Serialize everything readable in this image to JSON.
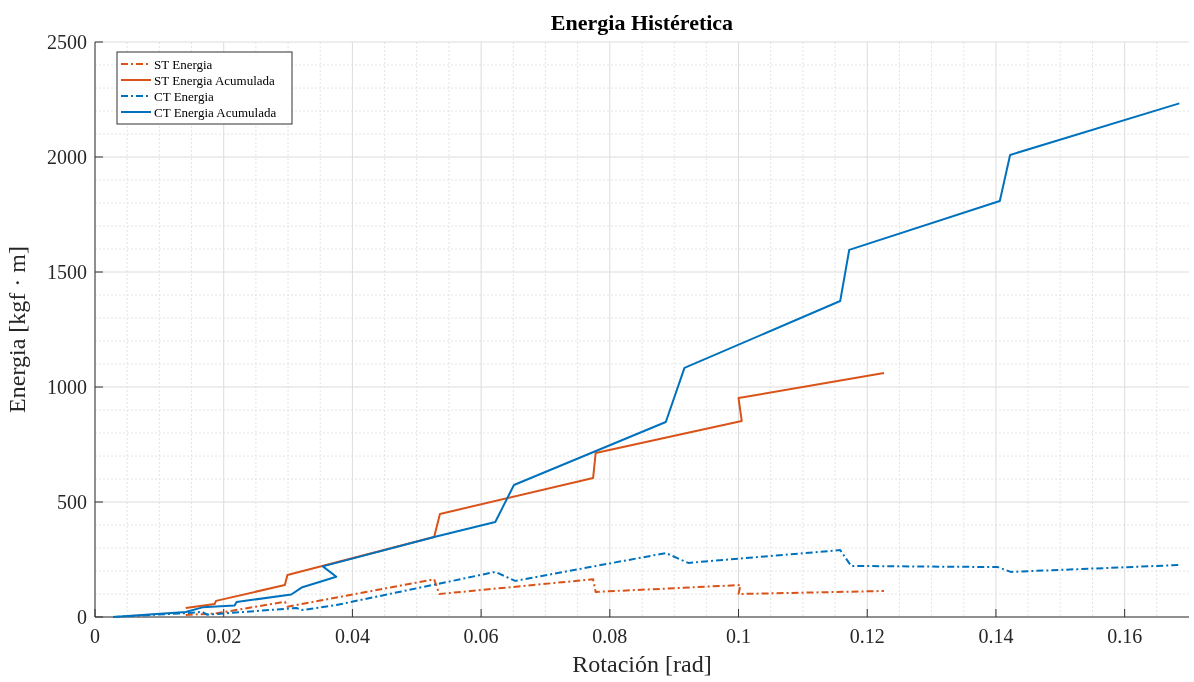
{
  "chart_data": {
    "type": "line",
    "title": "Energia Histéretica",
    "xlabel": "Rotación [rad]",
    "ylabel": "Energia [kgf · m]",
    "xlim": [
      0,
      0.17
    ],
    "xticks": [
      0,
      0.02,
      0.04,
      0.06,
      0.08,
      0.1,
      0.12,
      0.14,
      0.16
    ],
    "ylim": [
      0,
      2500
    ],
    "yticks": [
      0,
      500,
      1000,
      1500,
      2000,
      2500
    ],
    "grid": true,
    "legend": "top left",
    "marker": "none",
    "series": [
      {
        "name": "ST Energia",
        "color": "#d95319",
        "line_style": "dashdot",
        "x": [
          0.0141,
          0.0186,
          0.0295,
          0.0299,
          0.0527,
          0.0535,
          0.0774,
          0.0778,
          0.1003,
          0.1,
          0.1226
        ],
        "values": [
          9,
          15,
          66,
          45,
          164,
          100,
          164,
          109,
          139,
          100,
          113
        ]
      },
      {
        "name": "ST Energia Acumulada",
        "color": "#d95319",
        "line_style": "solid",
        "x": [
          0.0141,
          0.0186,
          0.0188,
          0.0295,
          0.0299,
          0.0527,
          0.0536,
          0.0774,
          0.0778,
          0.1005,
          0.1,
          0.1226
        ],
        "values": [
          39,
          57,
          70,
          139,
          183,
          348,
          448,
          604,
          713,
          852,
          952,
          1061
        ]
      },
      {
        "name": "CT Energia",
        "color": "#0072bd",
        "line_style": "dashdot",
        "x": [
          0.0028,
          0.0141,
          0.0167,
          0.0174,
          0.0313,
          0.0321,
          0.0375,
          0.0622,
          0.0653,
          0.0887,
          0.0922,
          0.1158,
          0.1175,
          0.1403,
          0.1423,
          0.1685
        ],
        "values": [
          0,
          17,
          22,
          10,
          39,
          30,
          52,
          196,
          157,
          278,
          235,
          291,
          222,
          217,
          196,
          226
        ]
      },
      {
        "name": "CT Energia Acumulada",
        "color": "#0072bd",
        "line_style": "solid",
        "x": [
          0.0028,
          0.0141,
          0.0167,
          0.0217,
          0.022,
          0.0305,
          0.0321,
          0.0375,
          0.0354,
          0.0527,
          0.0622,
          0.0651,
          0.0887,
          0.0916,
          0.1158,
          0.1172,
          0.1406,
          0.1422,
          0.1685
        ],
        "values": [
          0,
          22,
          42,
          50,
          65,
          98,
          128,
          175,
          220,
          348,
          413,
          574,
          848,
          1083,
          1374,
          1596,
          1809,
          2009,
          2233
        ]
      }
    ]
  }
}
